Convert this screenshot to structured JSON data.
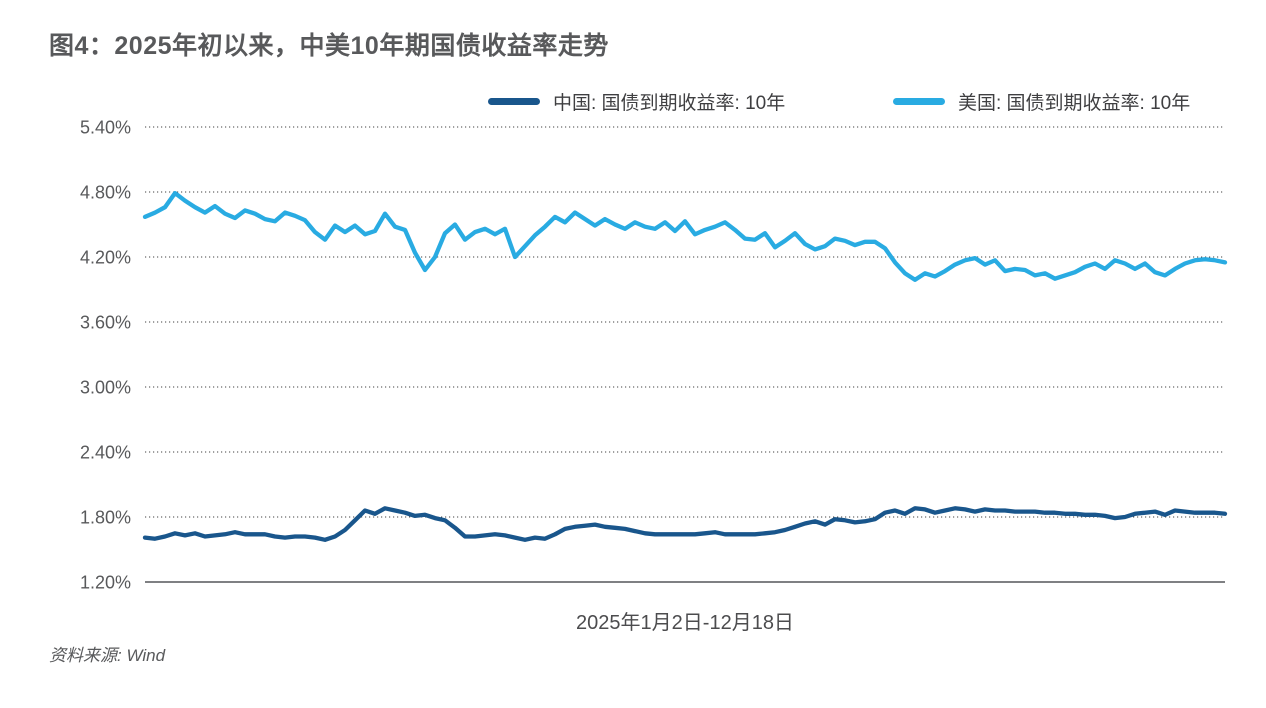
{
  "title": "图4：2025年初以来，中美10年期国债收益率走势",
  "legend": {
    "items": [
      {
        "label": "中国: 国债到期收益率: 10年",
        "color": "#19568C"
      },
      {
        "label": "美国: 国债到期收益率: 10年",
        "color": "#29ABE2"
      }
    ]
  },
  "x_axis_label": "2025年1月2日-12月18日",
  "source": "资料来源: Wind",
  "chart_data": {
    "type": "line",
    "title": "图4：2025年初以来，中美10年期国债收益率走势",
    "xlabel": "2025年1月2日-12月18日",
    "ylabel": "",
    "ylim": [
      1.2,
      5.4
    ],
    "grid": "horizontal-dotted",
    "legend_position": "top",
    "yticks": [
      {
        "v": 5.4,
        "label": "5.40%"
      },
      {
        "v": 4.8,
        "label": "4.80%"
      },
      {
        "v": 4.2,
        "label": "4.20%"
      },
      {
        "v": 3.6,
        "label": "3.60%"
      },
      {
        "v": 3.0,
        "label": "3.00%"
      },
      {
        "v": 2.4,
        "label": "2.40%"
      },
      {
        "v": 1.8,
        "label": "1.80%"
      },
      {
        "v": 1.2,
        "label": "1.20%"
      }
    ],
    "x_range": "trading days from 2025-01-02 to 2025-12-18, evenly spaced",
    "series": [
      {
        "name": "中国: 国债到期收益率: 10年",
        "color": "#19568C",
        "unit": "%",
        "values": [
          1.61,
          1.6,
          1.62,
          1.65,
          1.63,
          1.65,
          1.62,
          1.63,
          1.64,
          1.66,
          1.64,
          1.64,
          1.64,
          1.62,
          1.61,
          1.62,
          1.62,
          1.61,
          1.59,
          1.62,
          1.68,
          1.77,
          1.86,
          1.83,
          1.88,
          1.86,
          1.84,
          1.81,
          1.82,
          1.79,
          1.77,
          1.7,
          1.62,
          1.62,
          1.63,
          1.64,
          1.63,
          1.61,
          1.59,
          1.61,
          1.6,
          1.64,
          1.69,
          1.71,
          1.72,
          1.73,
          1.71,
          1.7,
          1.69,
          1.67,
          1.65,
          1.64,
          1.64,
          1.64,
          1.64,
          1.64,
          1.65,
          1.66,
          1.64,
          1.64,
          1.64,
          1.64,
          1.65,
          1.66,
          1.68,
          1.71,
          1.74,
          1.76,
          1.73,
          1.78,
          1.77,
          1.75,
          1.76,
          1.78,
          1.84,
          1.86,
          1.83,
          1.88,
          1.87,
          1.84,
          1.86,
          1.88,
          1.87,
          1.85,
          1.87,
          1.86,
          1.86,
          1.85,
          1.85,
          1.85,
          1.84,
          1.84,
          1.83,
          1.83,
          1.82,
          1.82,
          1.81,
          1.79,
          1.8,
          1.83,
          1.84,
          1.85,
          1.82,
          1.86,
          1.85,
          1.84,
          1.84,
          1.84,
          1.83
        ]
      },
      {
        "name": "美国: 国债到期收益率: 10年",
        "color": "#29ABE2",
        "unit": "%",
        "values": [
          4.57,
          4.61,
          4.66,
          4.79,
          4.72,
          4.66,
          4.61,
          4.67,
          4.6,
          4.56,
          4.63,
          4.6,
          4.55,
          4.53,
          4.61,
          4.58,
          4.54,
          4.43,
          4.36,
          4.49,
          4.43,
          4.49,
          4.41,
          4.44,
          4.6,
          4.48,
          4.45,
          4.24,
          4.08,
          4.2,
          4.42,
          4.5,
          4.36,
          4.43,
          4.46,
          4.41,
          4.46,
          4.2,
          4.3,
          4.4,
          4.48,
          4.57,
          4.52,
          4.61,
          4.55,
          4.49,
          4.55,
          4.5,
          4.46,
          4.52,
          4.48,
          4.46,
          4.52,
          4.44,
          4.53,
          4.41,
          4.45,
          4.48,
          4.52,
          4.45,
          4.37,
          4.36,
          4.42,
          4.29,
          4.35,
          4.42,
          4.32,
          4.27,
          4.3,
          4.37,
          4.35,
          4.31,
          4.34,
          4.34,
          4.28,
          4.15,
          4.05,
          3.99,
          4.05,
          4.02,
          4.07,
          4.13,
          4.17,
          4.19,
          4.13,
          4.17,
          4.07,
          4.09,
          4.08,
          4.03,
          4.05,
          4.0,
          4.03,
          4.06,
          4.11,
          4.14,
          4.09,
          4.17,
          4.14,
          4.09,
          4.14,
          4.06,
          4.03,
          4.09,
          4.14,
          4.17,
          4.18,
          4.17,
          4.15
        ]
      }
    ]
  },
  "style": {
    "title_color": "#58595b",
    "axis_label_color": "#58595b",
    "gridline_color": "#404040",
    "baseline_color": "#55565a",
    "background": "#ffffff"
  }
}
